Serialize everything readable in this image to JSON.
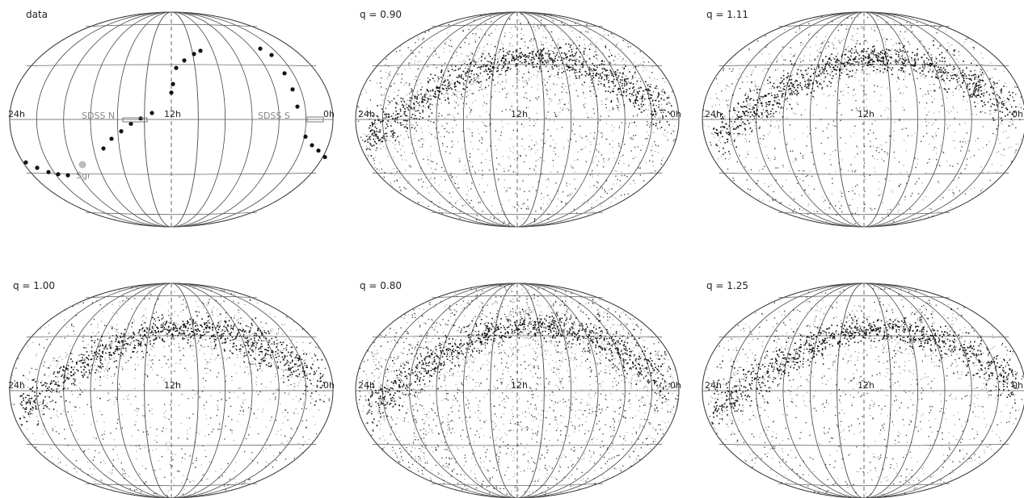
{
  "figure": {
    "panels": [
      {
        "id": "data",
        "title": "data",
        "mode": "data",
        "ra_left": "24h",
        "ra_center": "12h",
        "ra_right": "0h"
      },
      {
        "id": "q090",
        "title": "q = 0.90",
        "mode": "sim",
        "q": 0.9,
        "ra_left": "24h",
        "ra_center": "12h",
        "ra_right": "0h"
      },
      {
        "id": "q111",
        "title": "q = 1.11",
        "mode": "sim",
        "q": 1.11,
        "ra_left": "24h",
        "ra_center": "12h",
        "ra_right": "0h"
      },
      {
        "id": "q100",
        "title": "q = 1.00",
        "mode": "sim",
        "q": 1.0,
        "ra_left": "24h",
        "ra_center": "12h",
        "ra_right": "0h"
      },
      {
        "id": "q080",
        "title": "q = 0.80",
        "mode": "sim",
        "q": 0.8,
        "ra_left": "24h",
        "ra_center": "12h",
        "ra_right": "0h"
      },
      {
        "id": "q125",
        "title": "q = 1.25",
        "mode": "sim",
        "q": 1.25,
        "ra_left": "24h",
        "ra_center": "12h",
        "ra_right": "0h"
      }
    ],
    "data_labels": {
      "sdss_n": "SDSS N",
      "sdss_s": "SDSS S",
      "sgr": "Sgr"
    },
    "colors": {
      "debris_dark": "#111111",
      "debris_light": "#a8a8a8",
      "grid": "#555555",
      "label_grey": "#888888"
    }
  }
}
